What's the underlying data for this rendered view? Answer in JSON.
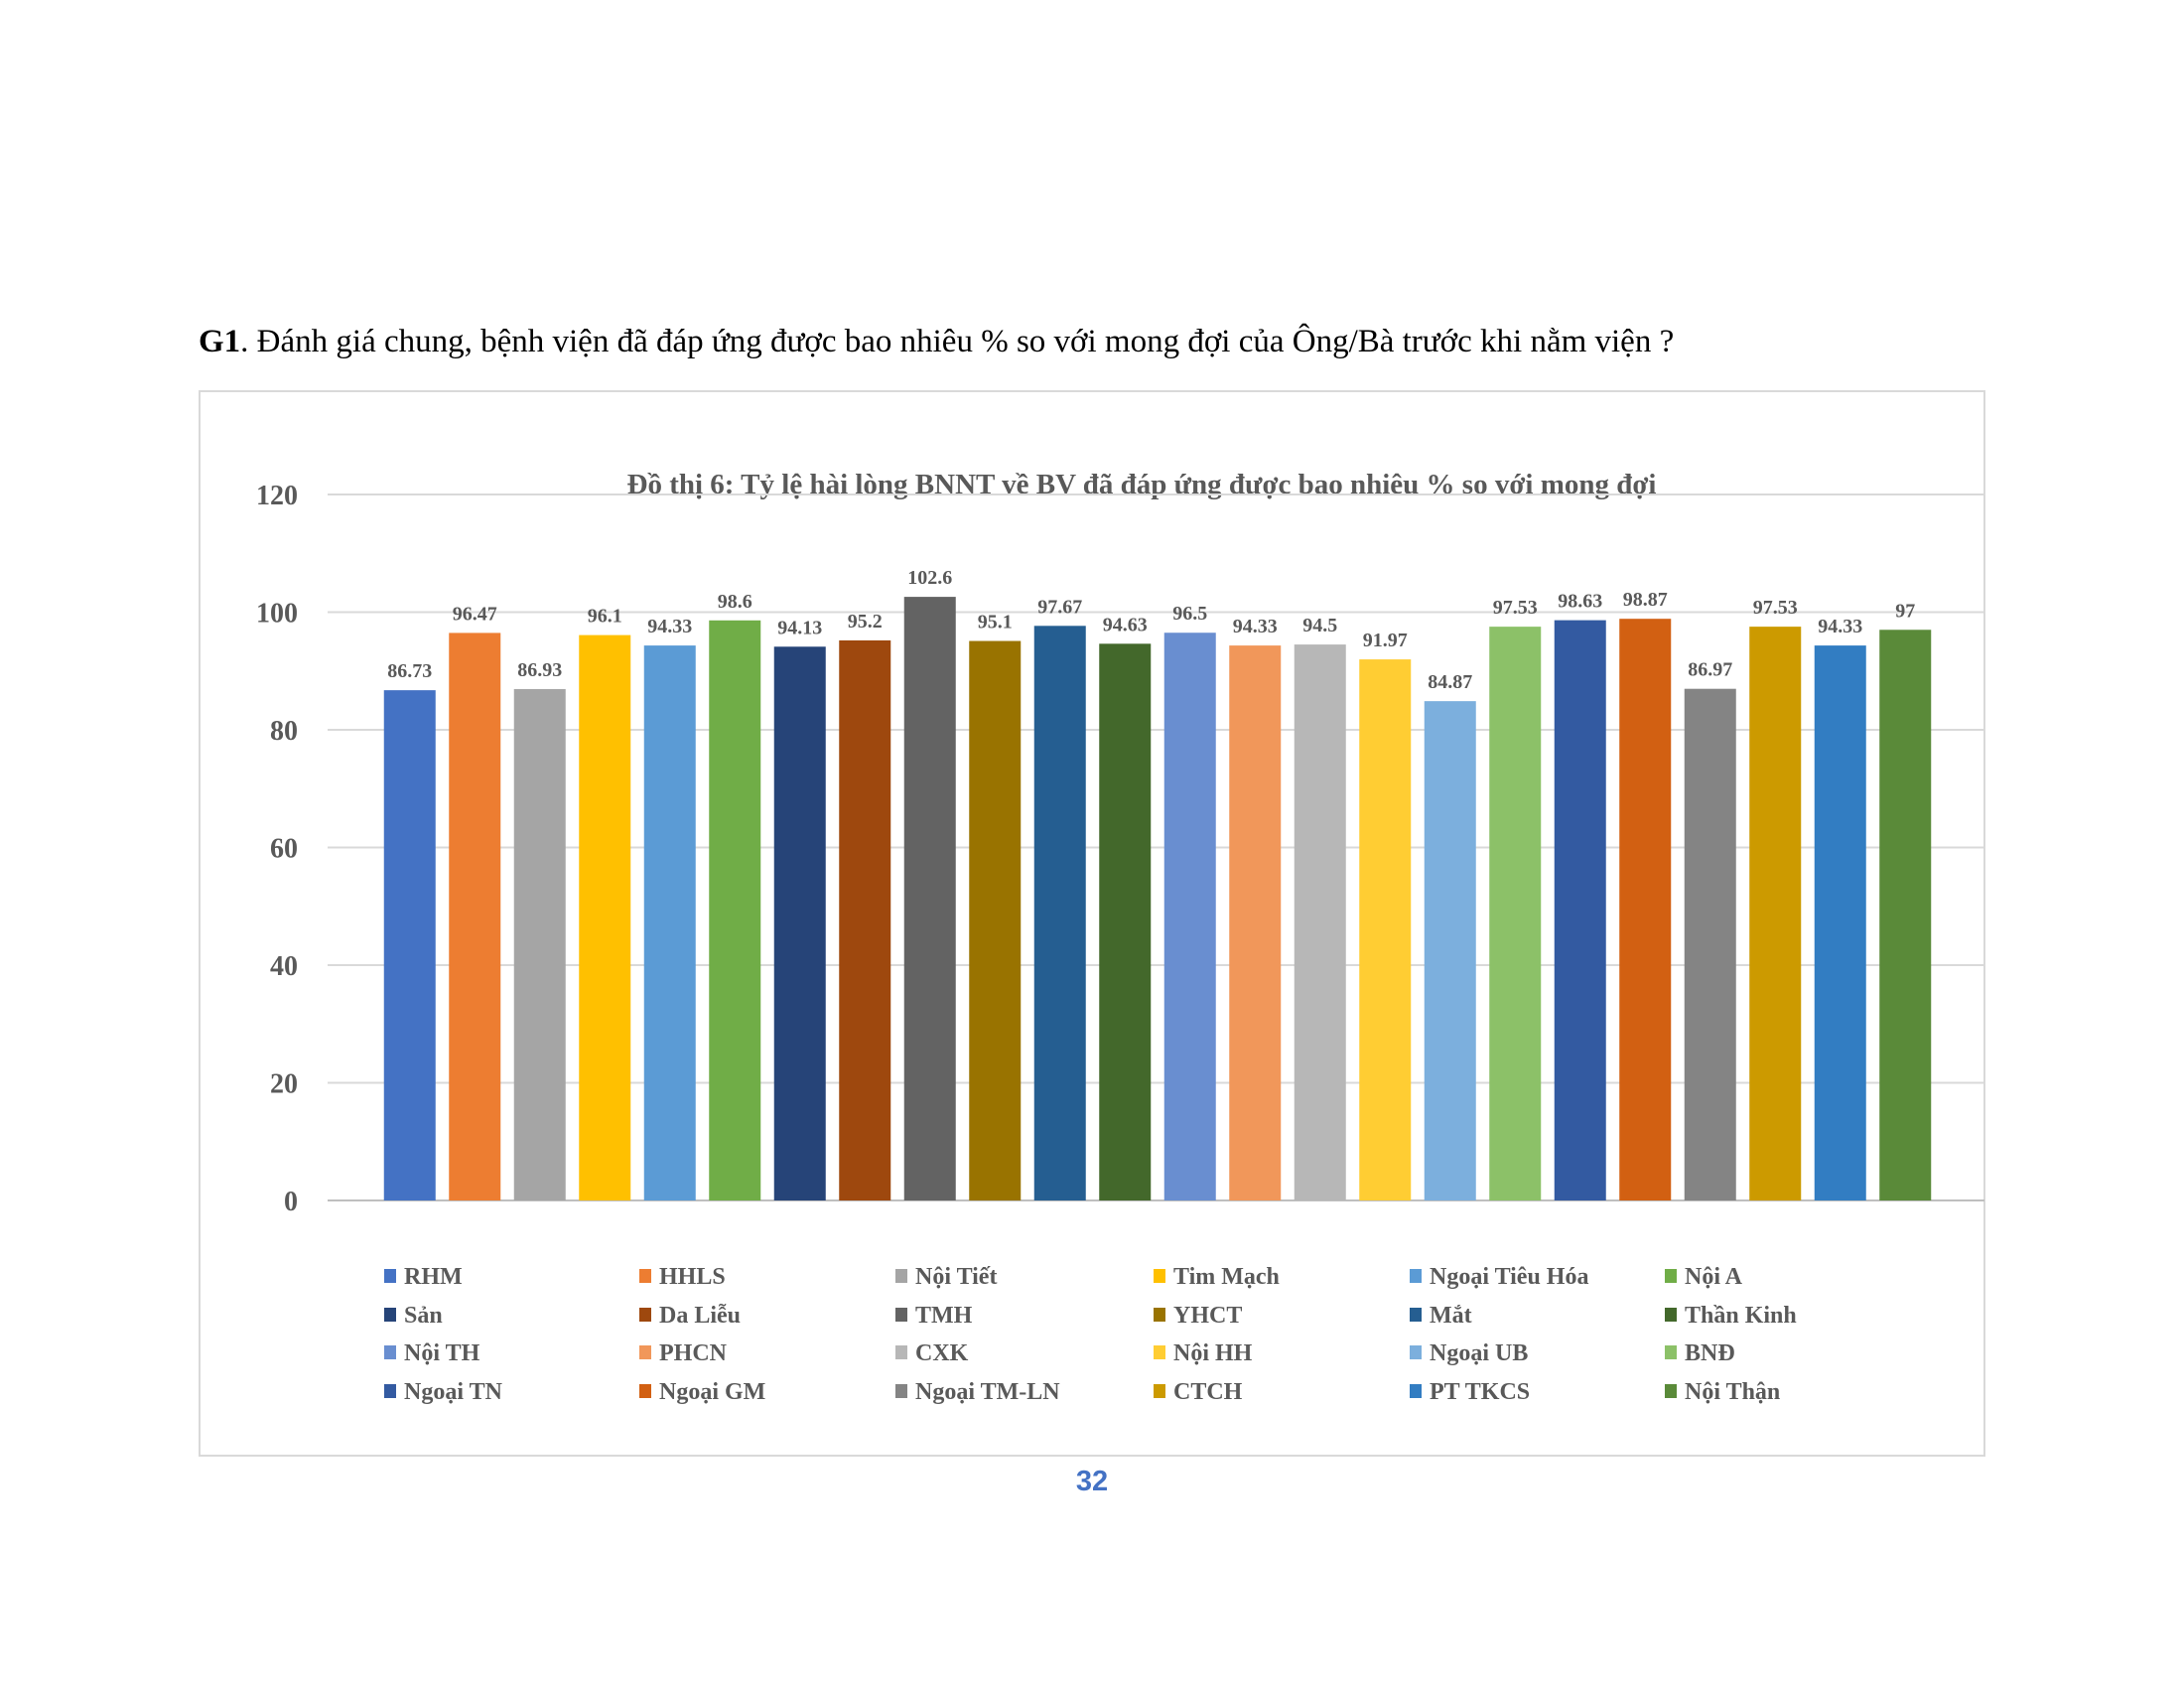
{
  "heading": {
    "prefix": "G1",
    "text": ". Đánh giá chung, bệnh viện đã đáp ứng được bao nhiêu % so với mong đợi của Ông/Bà trước khi nằm viện ?"
  },
  "page_number": "32",
  "chart_data": {
    "type": "bar",
    "title": "Đồ thị 6: Tỷ lệ hài lòng BNNT về BV đã đáp ứng được bao nhiêu % so với mong đợi",
    "xlabel": "",
    "ylabel": "",
    "ylim": [
      0,
      120
    ],
    "yticks": [
      0,
      20,
      40,
      60,
      80,
      100,
      120
    ],
    "grid": true,
    "legend_position": "bottom",
    "categories": [
      "RHM",
      "HHLS",
      "Nội Tiết",
      "Tim Mạch",
      "Ngoại Tiêu Hóa",
      "Nội A",
      "Sản",
      "Da Liễu",
      "TMH",
      "YHCT",
      "Mắt",
      "Thần Kinh",
      " Nội TH",
      "PHCN",
      "CXK",
      "Nội HH",
      "Ngoại UB",
      " BNĐ",
      "Ngoại TN",
      "Ngoại GM",
      "Ngoại TM-LN",
      "CTCH",
      "PT TKCS",
      "Nội Thận"
    ],
    "values": [
      86.73,
      96.47,
      86.93,
      96.1,
      94.33,
      98.6,
      94.13,
      95.2,
      102.6,
      95.1,
      97.67,
      94.63,
      96.5,
      94.33,
      94.5,
      91.97,
      84.87,
      97.53,
      98.63,
      98.87,
      86.97,
      97.53,
      94.33,
      97
    ],
    "colors": [
      "#4472c4",
      "#ed7d31",
      "#a5a5a5",
      "#ffc000",
      "#5b9bd5",
      "#70ad47",
      "#264478",
      "#9e480e",
      "#636363",
      "#997300",
      "#255e91",
      "#43682b",
      "#698ed0",
      "#f1975a",
      "#b7b7b7",
      "#ffcd33",
      "#7cafdd",
      "#8cc168",
      "#335aa1",
      "#d26012",
      "#848484",
      "#cc9a00",
      "#327dc2",
      "#5a8a39"
    ]
  }
}
